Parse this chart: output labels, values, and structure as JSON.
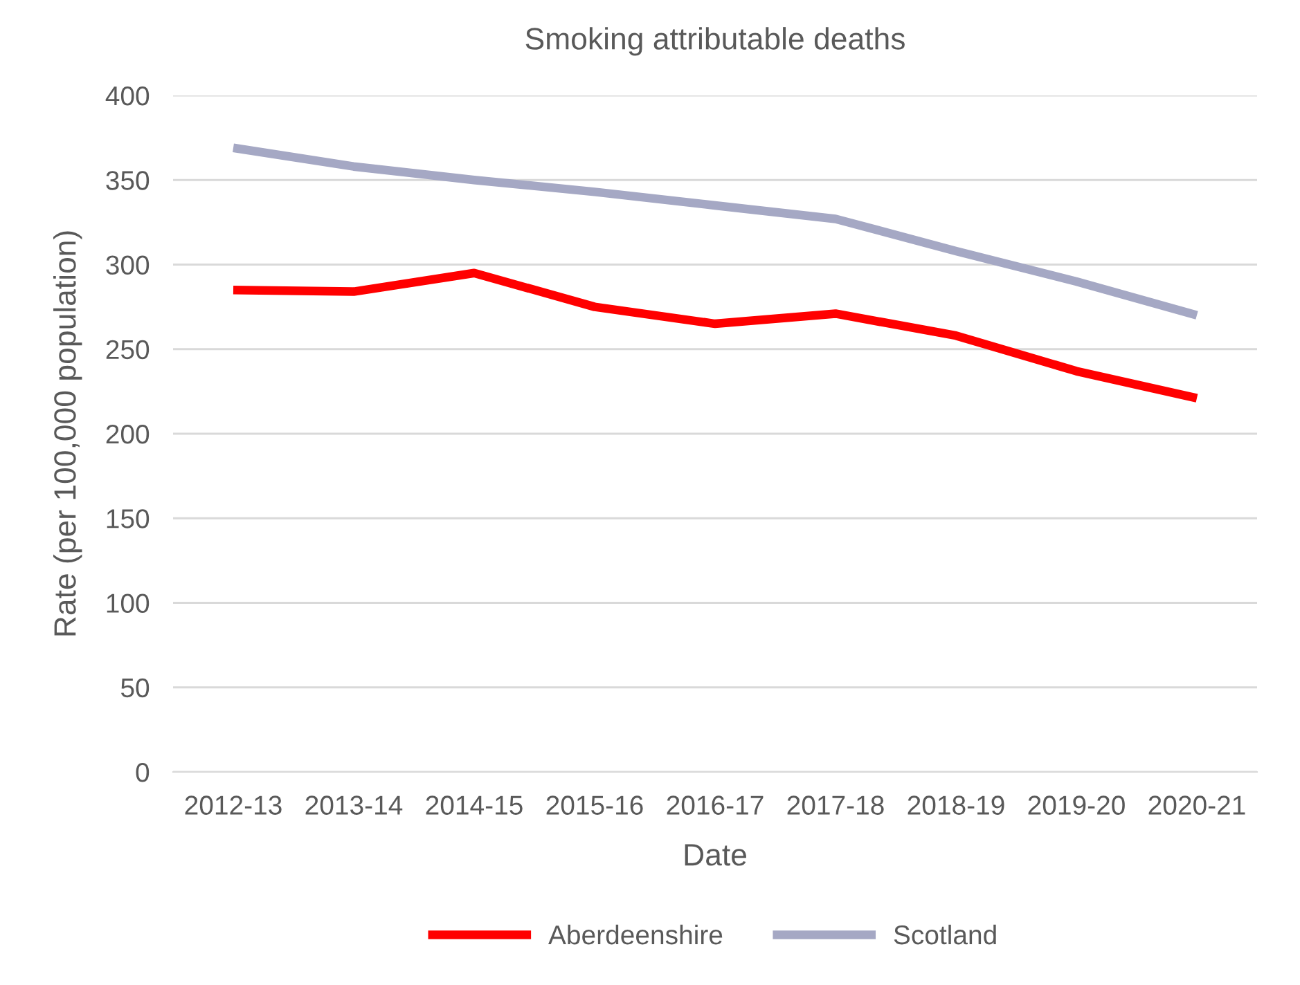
{
  "chart_data": {
    "type": "line",
    "title": "Smoking attributable deaths",
    "xlabel": "Date",
    "ylabel": "Rate (per 100,000 population)",
    "categories": [
      "2012-13",
      "2013-14",
      "2014-15",
      "2015-16",
      "2016-17",
      "2017-18",
      "2018-19",
      "2019-20",
      "2020-21"
    ],
    "series": [
      {
        "name": "Aberdeenshire",
        "color": "#ff0000",
        "values": [
          285,
          284,
          295,
          275,
          265,
          271,
          258,
          237,
          221
        ]
      },
      {
        "name": "Scotland",
        "color": "#a5a8c4",
        "values": [
          369,
          358,
          350,
          343,
          335,
          327,
          308,
          290,
          270
        ]
      }
    ],
    "ylim": [
      0,
      400
    ],
    "yticks": [
      0,
      50,
      100,
      150,
      200,
      250,
      300,
      350,
      400
    ],
    "grid": "y",
    "legend": "bottom",
    "marker": "none",
    "line_style": "solid"
  }
}
